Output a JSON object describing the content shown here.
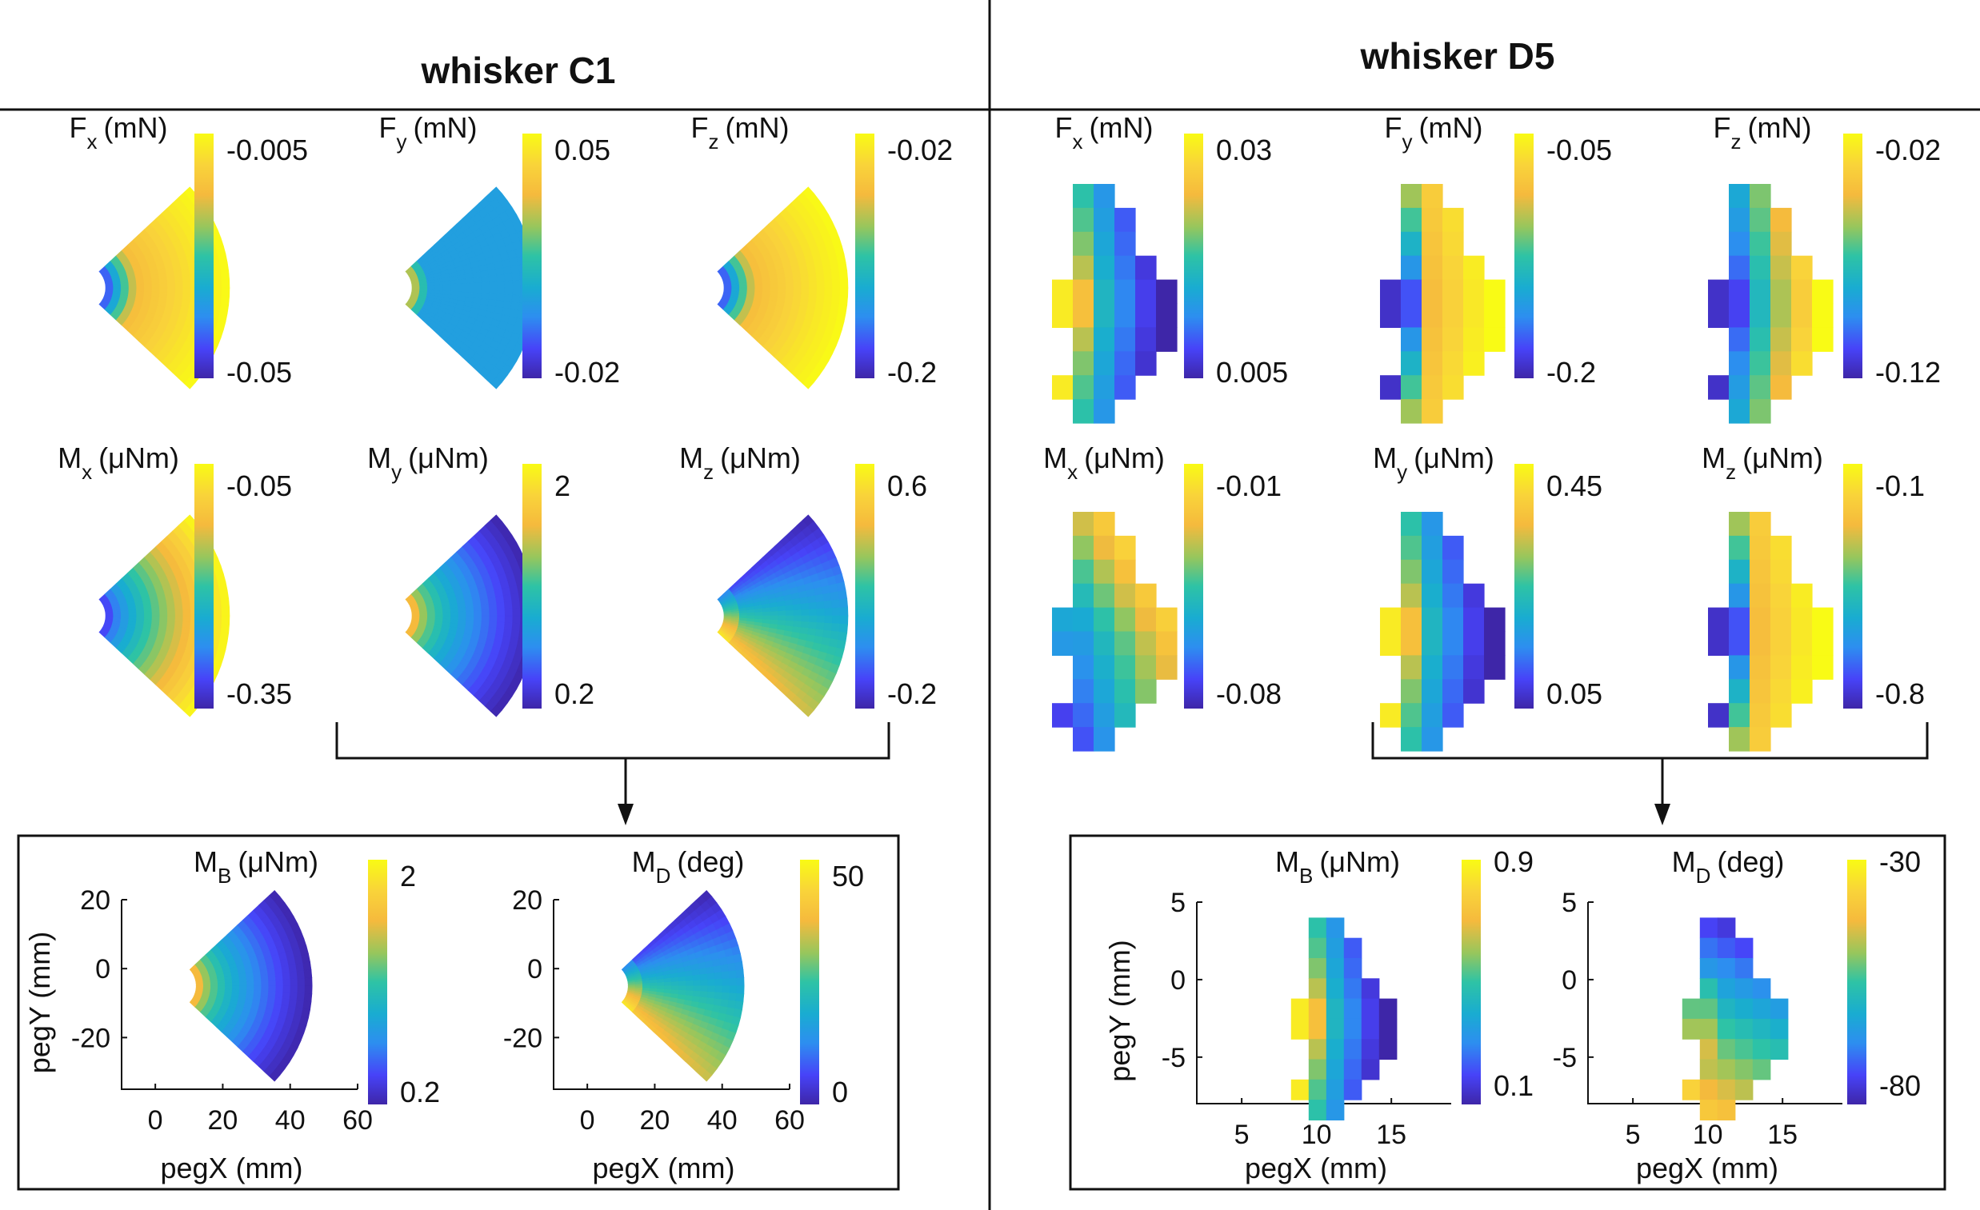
{
  "colormap": [
    "#3e26a8",
    "#4743f8",
    "#2d8ef0",
    "#19acd1",
    "#2ec3a5",
    "#98c65c",
    "#f5ba3d",
    "#f9d33a",
    "#f9fb15"
  ],
  "chart_data": [
    {
      "panel": "whisker C1",
      "title": "whisker C1",
      "type": "heatmap",
      "shape": "smooth",
      "subplots": [
        {
          "symbol": "F",
          "sub": "x",
          "unit": "(mN)",
          "cbar_top": "-0.005",
          "cbar_bottom": "-0.05",
          "pattern": "radial_inc"
        },
        {
          "symbol": "F",
          "sub": "y",
          "unit": "(mN)",
          "cbar_top": "0.05",
          "cbar_bottom": "-0.02",
          "pattern": "flat_inner_orange"
        },
        {
          "symbol": "F",
          "sub": "z",
          "unit": "(mN)",
          "cbar_top": "-0.02",
          "cbar_bottom": "-0.2",
          "pattern": "radial_inc"
        },
        {
          "symbol": "M",
          "sub": "x",
          "unit": "(μNm)",
          "cbar_top": "-0.05",
          "cbar_bottom": "-0.35",
          "pattern": "radial_inc_steep"
        },
        {
          "symbol": "M",
          "sub": "y",
          "unit": "(μNm)",
          "cbar_top": "2",
          "cbar_bottom": "0.2",
          "pattern": "radial_dec"
        },
        {
          "symbol": "M",
          "sub": "z",
          "unit": "(μNm)",
          "cbar_top": "0.6",
          "cbar_bottom": "-0.2",
          "pattern": "vertical_grad"
        }
      ],
      "derived": [
        {
          "symbol": "M",
          "sub": "B",
          "unit": "(μNm)",
          "cbar_ticks": [
            "2",
            "0.2"
          ],
          "pattern": "radial_dec",
          "xlabel": "pegX (mm)",
          "ylabel": "pegY (mm)",
          "xticks": [
            "0",
            "20",
            "40",
            "60"
          ],
          "yticks": [
            "20",
            "0",
            "-20"
          ],
          "xlim": [
            -10,
            60
          ],
          "ylim": [
            -35,
            20
          ]
        },
        {
          "symbol": "M",
          "sub": "D",
          "unit": "(deg)",
          "cbar_ticks": [
            "50",
            "0"
          ],
          "pattern": "vertical_grad",
          "xlabel": "pegX (mm)",
          "ylabel": "",
          "xticks": [
            "0",
            "20",
            "40",
            "60"
          ],
          "yticks": [
            "20",
            "0",
            "-20"
          ],
          "xlim": [
            -10,
            60
          ],
          "ylim": [
            -35,
            20
          ]
        }
      ]
    },
    {
      "panel": "whisker D5",
      "title": "whisker D5",
      "type": "heatmap",
      "shape": "blocky",
      "subplots": [
        {
          "symbol": "F",
          "sub": "x",
          "unit": "(mN)",
          "cbar_top": "0.03",
          "cbar_bottom": "0.005",
          "pattern": "radial_dec"
        },
        {
          "symbol": "F",
          "sub": "y",
          "unit": "(mN)",
          "cbar_top": "-0.05",
          "cbar_bottom": "-0.2",
          "pattern": "radial_inc"
        },
        {
          "symbol": "F",
          "sub": "z",
          "unit": "(mN)",
          "cbar_top": "-0.02",
          "cbar_bottom": "-0.12",
          "pattern": "radial_inc_steep"
        },
        {
          "symbol": "M",
          "sub": "x",
          "unit": "(μNm)",
          "cbar_top": "-0.01",
          "cbar_bottom": "-0.08",
          "pattern": "vertical_grad_inv"
        },
        {
          "symbol": "M",
          "sub": "y",
          "unit": "(μNm)",
          "cbar_top": "0.45",
          "cbar_bottom": "0.05",
          "pattern": "radial_dec"
        },
        {
          "symbol": "M",
          "sub": "z",
          "unit": "(μNm)",
          "cbar_top": "-0.1",
          "cbar_bottom": "-0.8",
          "pattern": "radial_inc"
        }
      ],
      "derived": [
        {
          "symbol": "M",
          "sub": "B",
          "unit": "(μNm)",
          "cbar_ticks": [
            "0.9",
            "0.1"
          ],
          "pattern": "radial_dec",
          "xlabel": "pegX (mm)",
          "ylabel": "pegY (mm)",
          "xticks": [
            "5",
            "10",
            "15"
          ],
          "yticks": [
            "5",
            "0",
            "-5"
          ],
          "xlim": [
            2,
            19
          ],
          "ylim": [
            -8,
            5
          ]
        },
        {
          "symbol": "M",
          "sub": "D",
          "unit": "(deg)",
          "cbar_ticks": [
            "-30",
            "-80"
          ],
          "pattern": "vertical_grad",
          "xlabel": "pegX (mm)",
          "ylabel": "",
          "xticks": [
            "5",
            "10",
            "15"
          ],
          "yticks": [
            "5",
            "0",
            "-5"
          ],
          "xlim": [
            2,
            19
          ],
          "ylim": [
            -8,
            5
          ]
        }
      ]
    }
  ]
}
